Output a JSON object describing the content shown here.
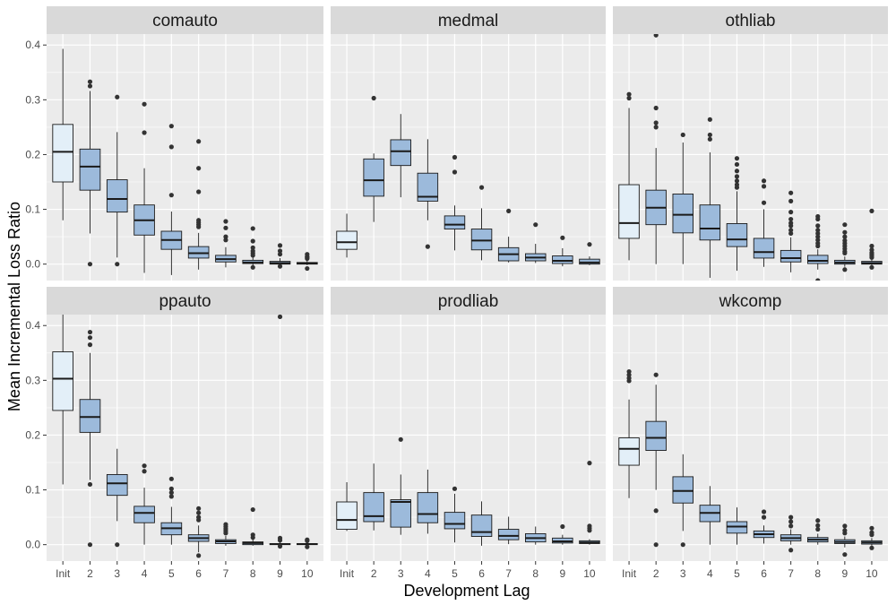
{
  "chart_data": {
    "type": "boxplot",
    "xlabel": "Development Lag",
    "ylabel": "Mean Incremental Loss Ratio",
    "categories": [
      "Init",
      "2",
      "3",
      "4",
      "5",
      "6",
      "7",
      "8",
      "9",
      "10"
    ],
    "yticks": [
      0.0,
      0.1,
      0.2,
      0.3,
      0.4
    ],
    "ytick_labels": [
      "0.0",
      "0.1",
      "0.2",
      "0.3",
      "0.4"
    ],
    "ylim": [
      -0.03,
      0.42
    ],
    "colors": {
      "panel_bg": "#ebebeb",
      "grid": "#ffffff",
      "strip_bg": "#d9d9d9",
      "init_fill": "#e3eff8",
      "box_fill": "#9cbadb",
      "stroke": "#1a1a1a",
      "outlier": "#333333"
    },
    "panels": [
      {
        "title": "comauto",
        "boxes": [
          {
            "lag": "Init",
            "lower": 0.08,
            "q1": 0.15,
            "median": 0.205,
            "q3": 0.255,
            "upper": 0.393,
            "outliers": []
          },
          {
            "lag": "2",
            "lower": 0.056,
            "q1": 0.135,
            "median": 0.178,
            "q3": 0.21,
            "upper": 0.316,
            "outliers": [
              0.333,
              0.325,
              0.0
            ]
          },
          {
            "lag": "3",
            "lower": 0.012,
            "q1": 0.095,
            "median": 0.119,
            "q3": 0.154,
            "upper": 0.241,
            "outliers": [
              0.305,
              0.0
            ]
          },
          {
            "lag": "4",
            "lower": -0.016,
            "q1": 0.053,
            "median": 0.08,
            "q3": 0.108,
            "upper": 0.175,
            "outliers": [
              0.292,
              0.24
            ]
          },
          {
            "lag": "5",
            "lower": -0.02,
            "q1": 0.027,
            "median": 0.044,
            "q3": 0.06,
            "upper": 0.096,
            "outliers": [
              0.252,
              0.214,
              0.126
            ]
          },
          {
            "lag": "6",
            "lower": -0.01,
            "q1": 0.011,
            "median": 0.02,
            "q3": 0.032,
            "upper": 0.057,
            "outliers": [
              0.224,
              0.175,
              0.132,
              0.08,
              0.076,
              0.072,
              0.068
            ]
          },
          {
            "lag": "7",
            "lower": -0.006,
            "q1": 0.004,
            "median": 0.009,
            "q3": 0.016,
            "upper": 0.031,
            "outliers": [
              0.078,
              0.066,
              0.05,
              0.044
            ]
          },
          {
            "lag": "8",
            "lower": -0.005,
            "q1": 0.001,
            "median": 0.003,
            "q3": 0.007,
            "upper": 0.012,
            "outliers": [
              0.065,
              0.042,
              0.03,
              0.024,
              0.02,
              0.016,
              -0.006
            ]
          },
          {
            "lag": "9",
            "lower": -0.002,
            "q1": 0.0,
            "median": 0.002,
            "q3": 0.005,
            "upper": 0.011,
            "outliers": [
              0.034,
              0.024,
              0.018,
              -0.004
            ]
          },
          {
            "lag": "10",
            "lower": -0.002,
            "q1": 0.0,
            "median": 0.001,
            "q3": 0.003,
            "upper": 0.007,
            "outliers": [
              0.018,
              0.014,
              0.012,
              0.01,
              -0.008
            ]
          }
        ]
      },
      {
        "title": "medmal",
        "boxes": [
          {
            "lag": "Init",
            "lower": 0.012,
            "q1": 0.027,
            "median": 0.04,
            "q3": 0.06,
            "upper": 0.092,
            "outliers": []
          },
          {
            "lag": "2",
            "lower": 0.077,
            "q1": 0.124,
            "median": 0.153,
            "q3": 0.192,
            "upper": 0.202,
            "outliers": [
              0.303
            ]
          },
          {
            "lag": "3",
            "lower": 0.122,
            "q1": 0.18,
            "median": 0.206,
            "q3": 0.227,
            "upper": 0.274,
            "outliers": []
          },
          {
            "lag": "4",
            "lower": 0.08,
            "q1": 0.115,
            "median": 0.123,
            "q3": 0.166,
            "upper": 0.228,
            "outliers": [
              0.032
            ]
          },
          {
            "lag": "5",
            "lower": 0.025,
            "q1": 0.064,
            "median": 0.072,
            "q3": 0.088,
            "upper": 0.107,
            "outliers": [
              0.195,
              0.168
            ]
          },
          {
            "lag": "6",
            "lower": 0.007,
            "q1": 0.026,
            "median": 0.043,
            "q3": 0.064,
            "upper": 0.102,
            "outliers": [
              0.14
            ]
          },
          {
            "lag": "7",
            "lower": 0.003,
            "q1": 0.006,
            "median": 0.018,
            "q3": 0.03,
            "upper": 0.05,
            "outliers": [
              0.097
            ]
          },
          {
            "lag": "8",
            "lower": 0.002,
            "q1": 0.006,
            "median": 0.012,
            "q3": 0.019,
            "upper": 0.037,
            "outliers": [
              0.072
            ]
          },
          {
            "lag": "9",
            "lower": -0.004,
            "q1": 0.001,
            "median": 0.006,
            "q3": 0.015,
            "upper": 0.029,
            "outliers": [
              0.048
            ]
          },
          {
            "lag": "10",
            "lower": -0.002,
            "q1": 0.0,
            "median": 0.003,
            "q3": 0.009,
            "upper": 0.014,
            "outliers": [
              0.036
            ]
          }
        ]
      },
      {
        "title": "othliab",
        "boxes": [
          {
            "lag": "Init",
            "lower": 0.007,
            "q1": 0.047,
            "median": 0.075,
            "q3": 0.145,
            "upper": 0.285,
            "outliers": [
              0.31,
              0.303
            ]
          },
          {
            "lag": "2",
            "lower": 0.0,
            "q1": 0.072,
            "median": 0.103,
            "q3": 0.135,
            "upper": 0.212,
            "outliers": [
              0.418,
              0.285,
              0.258,
              0.25
            ]
          },
          {
            "lag": "3",
            "lower": 0.0,
            "q1": 0.057,
            "median": 0.09,
            "q3": 0.128,
            "upper": 0.222,
            "outliers": [
              0.236
            ]
          },
          {
            "lag": "4",
            "lower": -0.025,
            "q1": 0.044,
            "median": 0.065,
            "q3": 0.108,
            "upper": 0.204,
            "outliers": [
              0.264,
              0.236,
              0.228
            ]
          },
          {
            "lag": "5",
            "lower": -0.012,
            "q1": 0.032,
            "median": 0.045,
            "q3": 0.074,
            "upper": 0.133,
            "outliers": [
              0.193,
              0.182,
              0.17,
              0.16,
              0.152,
              0.145,
              0.14
            ]
          },
          {
            "lag": "6",
            "lower": -0.005,
            "q1": 0.011,
            "median": 0.022,
            "q3": 0.047,
            "upper": 0.1,
            "outliers": [
              0.152,
              0.142,
              0.112
            ]
          },
          {
            "lag": "7",
            "lower": -0.015,
            "q1": 0.004,
            "median": 0.011,
            "q3": 0.025,
            "upper": 0.049,
            "outliers": [
              0.13,
              0.115,
              0.095,
              0.082,
              0.075,
              0.07,
              0.062,
              0.056
            ]
          },
          {
            "lag": "8",
            "lower": -0.01,
            "q1": 0.001,
            "median": 0.006,
            "q3": 0.016,
            "upper": 0.027,
            "outliers": [
              0.087,
              0.082,
              0.07,
              0.062,
              0.056,
              0.05,
              0.044,
              0.038,
              0.033,
              -0.03
            ]
          },
          {
            "lag": "9",
            "lower": -0.005,
            "q1": 0.0,
            "median": 0.003,
            "q3": 0.007,
            "upper": 0.014,
            "outliers": [
              0.072,
              0.058,
              0.05,
              0.043,
              0.038,
              0.033,
              0.028,
              0.023,
              0.02,
              -0.01
            ]
          },
          {
            "lag": "10",
            "lower": -0.004,
            "q1": 0.0,
            "median": 0.002,
            "q3": 0.005,
            "upper": 0.01,
            "outliers": [
              0.097,
              0.033,
              0.026,
              0.021,
              0.018,
              0.015,
              0.012,
              -0.006
            ]
          }
        ]
      },
      {
        "title": "ppauto",
        "boxes": [
          {
            "lag": "Init",
            "lower": 0.11,
            "q1": 0.245,
            "median": 0.303,
            "q3": 0.352,
            "upper": 0.42,
            "outliers": []
          },
          {
            "lag": "2",
            "lower": 0.118,
            "q1": 0.205,
            "median": 0.233,
            "q3": 0.265,
            "upper": 0.35,
            "outliers": [
              0.388,
              0.378,
              0.365,
              0.11,
              0.0
            ]
          },
          {
            "lag": "3",
            "lower": 0.043,
            "q1": 0.09,
            "median": 0.112,
            "q3": 0.128,
            "upper": 0.175,
            "outliers": [
              0.0
            ]
          },
          {
            "lag": "4",
            "lower": 0.0,
            "q1": 0.04,
            "median": 0.058,
            "q3": 0.07,
            "upper": 0.104,
            "outliers": [
              0.144,
              0.134
            ]
          },
          {
            "lag": "5",
            "lower": 0.0,
            "q1": 0.018,
            "median": 0.03,
            "q3": 0.04,
            "upper": 0.069,
            "outliers": [
              0.12,
              0.102,
              0.095,
              0.088
            ]
          },
          {
            "lag": "6",
            "lower": -0.014,
            "q1": 0.006,
            "median": 0.012,
            "q3": 0.018,
            "upper": 0.035,
            "outliers": [
              0.066,
              0.058,
              0.05,
              0.045,
              -0.02
            ]
          },
          {
            "lag": "7",
            "lower": -0.002,
            "q1": 0.002,
            "median": 0.006,
            "q3": 0.009,
            "upper": 0.016,
            "outliers": [
              0.037,
              0.033,
              0.029,
              0.025,
              0.021
            ]
          },
          {
            "lag": "8",
            "lower": -0.002,
            "q1": 0.0,
            "median": 0.003,
            "q3": 0.005,
            "upper": 0.01,
            "outliers": [
              0.064,
              0.018,
              0.013
            ]
          },
          {
            "lag": "9",
            "lower": -0.002,
            "q1": 0.0,
            "median": 0.001,
            "q3": 0.002,
            "upper": 0.005,
            "outliers": [
              0.416,
              0.012,
              0.008,
              -0.003
            ]
          },
          {
            "lag": "10",
            "lower": -0.002,
            "q1": 0.0,
            "median": 0.001,
            "q3": 0.002,
            "upper": 0.004,
            "outliers": [
              0.009,
              0.007,
              -0.004
            ]
          }
        ]
      },
      {
        "title": "prodliab",
        "boxes": [
          {
            "lag": "Init",
            "lower": 0.025,
            "q1": 0.028,
            "median": 0.045,
            "q3": 0.078,
            "upper": 0.114,
            "outliers": []
          },
          {
            "lag": "2",
            "lower": 0.026,
            "q1": 0.042,
            "median": 0.052,
            "q3": 0.095,
            "upper": 0.148,
            "outliers": []
          },
          {
            "lag": "3",
            "lower": 0.018,
            "q1": 0.032,
            "median": 0.078,
            "q3": 0.082,
            "upper": 0.128,
            "outliers": [
              0.192
            ]
          },
          {
            "lag": "4",
            "lower": 0.02,
            "q1": 0.04,
            "median": 0.056,
            "q3": 0.095,
            "upper": 0.137,
            "outliers": []
          },
          {
            "lag": "5",
            "lower": 0.004,
            "q1": 0.029,
            "median": 0.038,
            "q3": 0.059,
            "upper": 0.093,
            "outliers": [
              0.102
            ]
          },
          {
            "lag": "6",
            "lower": -0.002,
            "q1": 0.015,
            "median": 0.023,
            "q3": 0.054,
            "upper": 0.079,
            "outliers": []
          },
          {
            "lag": "7",
            "lower": 0.001,
            "q1": 0.009,
            "median": 0.016,
            "q3": 0.028,
            "upper": 0.051,
            "outliers": []
          },
          {
            "lag": "8",
            "lower": 0.0,
            "q1": 0.005,
            "median": 0.012,
            "q3": 0.02,
            "upper": 0.033,
            "outliers": []
          },
          {
            "lag": "9",
            "lower": 0.0,
            "q1": 0.003,
            "median": 0.006,
            "q3": 0.012,
            "upper": 0.018,
            "outliers": [
              0.033
            ]
          },
          {
            "lag": "10",
            "lower": 0.0,
            "q1": 0.002,
            "median": 0.004,
            "q3": 0.007,
            "upper": 0.01,
            "outliers": [
              0.149,
              0.034,
              0.03,
              0.026
            ]
          }
        ]
      },
      {
        "title": "wkcomp",
        "boxes": [
          {
            "lag": "Init",
            "lower": 0.085,
            "q1": 0.145,
            "median": 0.175,
            "q3": 0.195,
            "upper": 0.265,
            "outliers": [
              0.316,
              0.31,
              0.304,
              0.299
            ]
          },
          {
            "lag": "2",
            "lower": 0.1,
            "q1": 0.172,
            "median": 0.195,
            "q3": 0.225,
            "upper": 0.292,
            "outliers": [
              0.31,
              0.062,
              0.0
            ]
          },
          {
            "lag": "3",
            "lower": 0.025,
            "q1": 0.076,
            "median": 0.098,
            "q3": 0.124,
            "upper": 0.165,
            "outliers": [
              0.0
            ]
          },
          {
            "lag": "4",
            "lower": 0.0,
            "q1": 0.042,
            "median": 0.058,
            "q3": 0.072,
            "upper": 0.107,
            "outliers": []
          },
          {
            "lag": "5",
            "lower": 0.0,
            "q1": 0.021,
            "median": 0.033,
            "q3": 0.042,
            "upper": 0.068,
            "outliers": []
          },
          {
            "lag": "6",
            "lower": 0.002,
            "q1": 0.013,
            "median": 0.019,
            "q3": 0.025,
            "upper": 0.035,
            "outliers": [
              0.06,
              0.05
            ]
          },
          {
            "lag": "7",
            "lower": 0.0,
            "q1": 0.007,
            "median": 0.012,
            "q3": 0.018,
            "upper": 0.028,
            "outliers": [
              0.05,
              0.042,
              0.034,
              -0.01
            ]
          },
          {
            "lag": "8",
            "lower": 0.0,
            "q1": 0.005,
            "median": 0.009,
            "q3": 0.013,
            "upper": 0.02,
            "outliers": [
              0.044,
              0.035,
              0.028
            ]
          },
          {
            "lag": "9",
            "lower": -0.005,
            "q1": 0.002,
            "median": 0.005,
            "q3": 0.009,
            "upper": 0.015,
            "outliers": [
              0.034,
              0.026,
              0.021,
              -0.018
            ]
          },
          {
            "lag": "10",
            "lower": -0.002,
            "q1": 0.001,
            "median": 0.004,
            "q3": 0.007,
            "upper": 0.012,
            "outliers": [
              0.03,
              0.022,
              0.018,
              -0.006
            ]
          }
        ]
      }
    ]
  }
}
